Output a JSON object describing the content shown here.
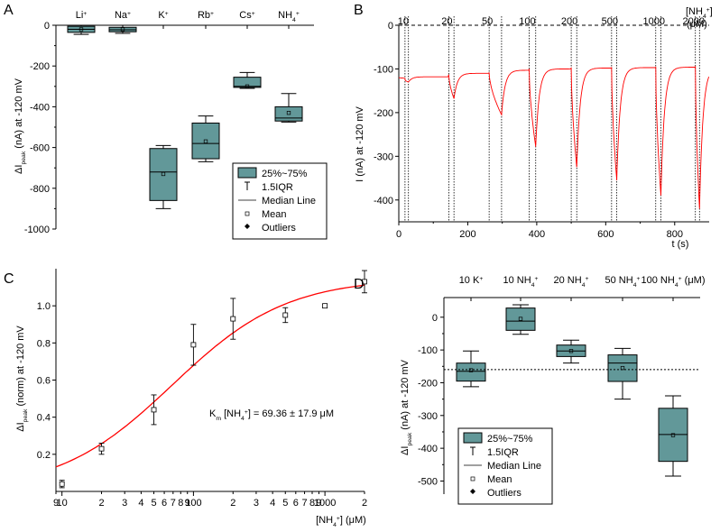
{
  "chart_data": [
    {
      "panel": "A",
      "type": "box",
      "ylabel_main": "ΔI",
      "ylabel_sub": "peak",
      "ylabel_rest": " (nA) at -120 mV",
      "ylim": [
        -1000,
        0
      ],
      "yticks": [
        0,
        -200,
        -400,
        -600,
        -800,
        -1000
      ],
      "categories": [
        {
          "base": "Li",
          "sup": "+"
        },
        {
          "base": "Na",
          "sup": "+"
        },
        {
          "base": "K",
          "sup": "+"
        },
        {
          "base": "Rb",
          "sup": "+"
        },
        {
          "base": "Cs",
          "sup": "+"
        },
        {
          "base": "NH",
          "sub": "4",
          "sup": "+"
        }
      ],
      "boxes": [
        {
          "wlo": -45,
          "q1": -35,
          "med": -20,
          "q3": -5,
          "whi": 0,
          "mean": -20
        },
        {
          "wlo": -40,
          "q1": -32,
          "med": -22,
          "q3": -10,
          "whi": 0,
          "mean": -20
        },
        {
          "wlo": -900,
          "q1": -860,
          "med": -720,
          "q3": -605,
          "whi": -590,
          "mean": -730
        },
        {
          "wlo": -670,
          "q1": -655,
          "med": -580,
          "q3": -480,
          "whi": -445,
          "mean": -570
        },
        {
          "wlo": -310,
          "q1": -305,
          "med": -300,
          "q3": -255,
          "whi": -232,
          "mean": -300
        },
        {
          "wlo": -475,
          "q1": -470,
          "med": -455,
          "q3": -400,
          "whi": -335,
          "mean": -430
        }
      ],
      "legend": [
        "25%~75%",
        "1.5IQR",
        "Median Line",
        "Mean",
        "Outliers"
      ]
    },
    {
      "panel": "B",
      "type": "line",
      "xlabel": "t (s)",
      "ylabel": "I (nA) at -120 mV",
      "xlim": [
        0,
        900
      ],
      "ylim": [
        -450,
        0
      ],
      "xticks": [
        0,
        200,
        400,
        600,
        800
      ],
      "yticks": [
        0,
        -100,
        -200,
        -300,
        -400
      ],
      "unit_label": "[NH",
      "unit_sub": "4",
      "unit_sup": "+",
      "unit_close": "]",
      "unit_line2": "(μM)",
      "concentrations": [
        "10",
        "20",
        "50",
        "100",
        "200",
        "500",
        "1000",
        "2000"
      ],
      "pulses": [
        {
          "on": 18,
          "off": 28,
          "base_before": -125,
          "peak": -130,
          "base_after": -118
        },
        {
          "on": 145,
          "off": 160,
          "base_before": -113,
          "peak": -168,
          "base_after": -110
        },
        {
          "on": 262,
          "off": 298,
          "base_before": -108,
          "peak": -205,
          "base_after": -103
        },
        {
          "on": 378,
          "off": 397,
          "base_before": -100,
          "peak": -278,
          "base_after": -100
        },
        {
          "on": 500,
          "off": 516,
          "base_before": -98,
          "peak": -325,
          "base_after": -98
        },
        {
          "on": 617,
          "off": 632,
          "base_before": -97,
          "peak": -355,
          "base_after": -97
        },
        {
          "on": 745,
          "off": 760,
          "base_before": -96,
          "peak": -390,
          "base_after": -96
        },
        {
          "on": 860,
          "off": 872,
          "base_before": -95,
          "peak": -420,
          "base_after": -96
        }
      ],
      "start_value": -120,
      "end_value": -95
    },
    {
      "panel": "C",
      "type": "scatter",
      "scale_x": "log",
      "xlabel_main": "[NH",
      "xlabel_sub": "4",
      "xlabel_sup": "+",
      "xlabel_rest": "] (μM)",
      "ylabel_main": "ΔI",
      "ylabel_sub": "peak",
      "ylabel_rest": " (norm) at -120 mV",
      "xlim": [
        9,
        2000
      ],
      "ylim": [
        0,
        1.2
      ],
      "yticks": [
        0.2,
        0.4,
        0.6,
        0.8,
        1.0
      ],
      "ytick_labels": [
        "0.2",
        "0.4",
        "0.6",
        "0.8",
        "1.0"
      ],
      "xtick_labels": [
        {
          "v": 9,
          "t": "9"
        },
        {
          "v": 10,
          "t": "10"
        },
        {
          "v": 20,
          "t": "2"
        },
        {
          "v": 30,
          "t": "3"
        },
        {
          "v": 40,
          "t": "4"
        },
        {
          "v": 50,
          "t": "5"
        },
        {
          "v": 60,
          "t": "6"
        },
        {
          "v": 70,
          "t": "7"
        },
        {
          "v": 80,
          "t": "8"
        },
        {
          "v": 90,
          "t": "9"
        },
        {
          "v": 100,
          "t": "100"
        },
        {
          "v": 200,
          "t": "2"
        },
        {
          "v": 300,
          "t": "3"
        },
        {
          "v": 400,
          "t": "4"
        },
        {
          "v": 500,
          "t": "5"
        },
        {
          "v": 600,
          "t": "6"
        },
        {
          "v": 700,
          "t": "7"
        },
        {
          "v": 800,
          "t": "8"
        },
        {
          "v": 900,
          "t": "9"
        },
        {
          "v": 1000,
          "t": "1000"
        },
        {
          "v": 2000,
          "t": "2"
        }
      ],
      "points": [
        {
          "x": 10,
          "y": 0.04,
          "err": 0.02
        },
        {
          "x": 20,
          "y": 0.23,
          "err": 0.03
        },
        {
          "x": 50,
          "y": 0.44,
          "err": 0.08
        },
        {
          "x": 100,
          "y": 0.79,
          "err": 0.11
        },
        {
          "x": 200,
          "y": 0.93,
          "err": 0.11
        },
        {
          "x": 500,
          "y": 0.95,
          "err": 0.04
        },
        {
          "x": 1000,
          "y": 1.0,
          "err": 0.01
        },
        {
          "x": 2000,
          "y": 1.13,
          "err": 0.06
        }
      ],
      "fit": {
        "km": 69.36,
        "max": 1.15,
        "n": 1
      },
      "annotation_main": "K",
      "annotation_sub": "m",
      "annotation_mid": " [NH",
      "annotation_sub2": "4",
      "annotation_sup": "+",
      "annotation_rest": "] = 69.36 ± 17.9 μM"
    },
    {
      "panel": "D",
      "type": "box",
      "ylabel_main": "ΔI",
      "ylabel_sub": "peak",
      "ylabel_rest": " (nA) at -120 mV",
      "ylim": [
        -540,
        60
      ],
      "yticks": [
        0,
        -100,
        -200,
        -300,
        -400,
        -500
      ],
      "reference_line": -160,
      "categories": [
        {
          "base": "10 K",
          "sup": "+"
        },
        {
          "base": "10 NH",
          "sub": "4",
          "sup": "+"
        },
        {
          "base": "20 NH",
          "sub": "4",
          "sup": "+"
        },
        {
          "base": "50 NH",
          "sub": "4",
          "sup": "+"
        },
        {
          "base": "100 NH",
          "sub": "4",
          "sup": "+",
          "suffix": " (μM)"
        }
      ],
      "boxes": [
        {
          "wlo": -212,
          "q1": -195,
          "med": -165,
          "q3": -140,
          "whi": -103,
          "mean": -162
        },
        {
          "wlo": -52,
          "q1": -40,
          "med": -12,
          "q3": 28,
          "whi": 38,
          "mean": -5
        },
        {
          "wlo": -140,
          "q1": -120,
          "med": -103,
          "q3": -85,
          "whi": -70,
          "mean": -103
        },
        {
          "wlo": -250,
          "q1": -196,
          "med": -140,
          "q3": -115,
          "whi": -95,
          "mean": -155
        },
        {
          "wlo": -485,
          "q1": -440,
          "med": -358,
          "q3": -278,
          "whi": -240,
          "mean": -360
        }
      ],
      "legend": [
        "25%~75%",
        "1.5IQR",
        "Median Line",
        "Mean",
        "Outliers"
      ]
    }
  ],
  "panel_letters": [
    "A",
    "B",
    "C",
    "D"
  ],
  "colors": {
    "box_fill": "#629899",
    "trace": "#ff0000",
    "fit": "#ff0000",
    "axis": "#000000"
  }
}
